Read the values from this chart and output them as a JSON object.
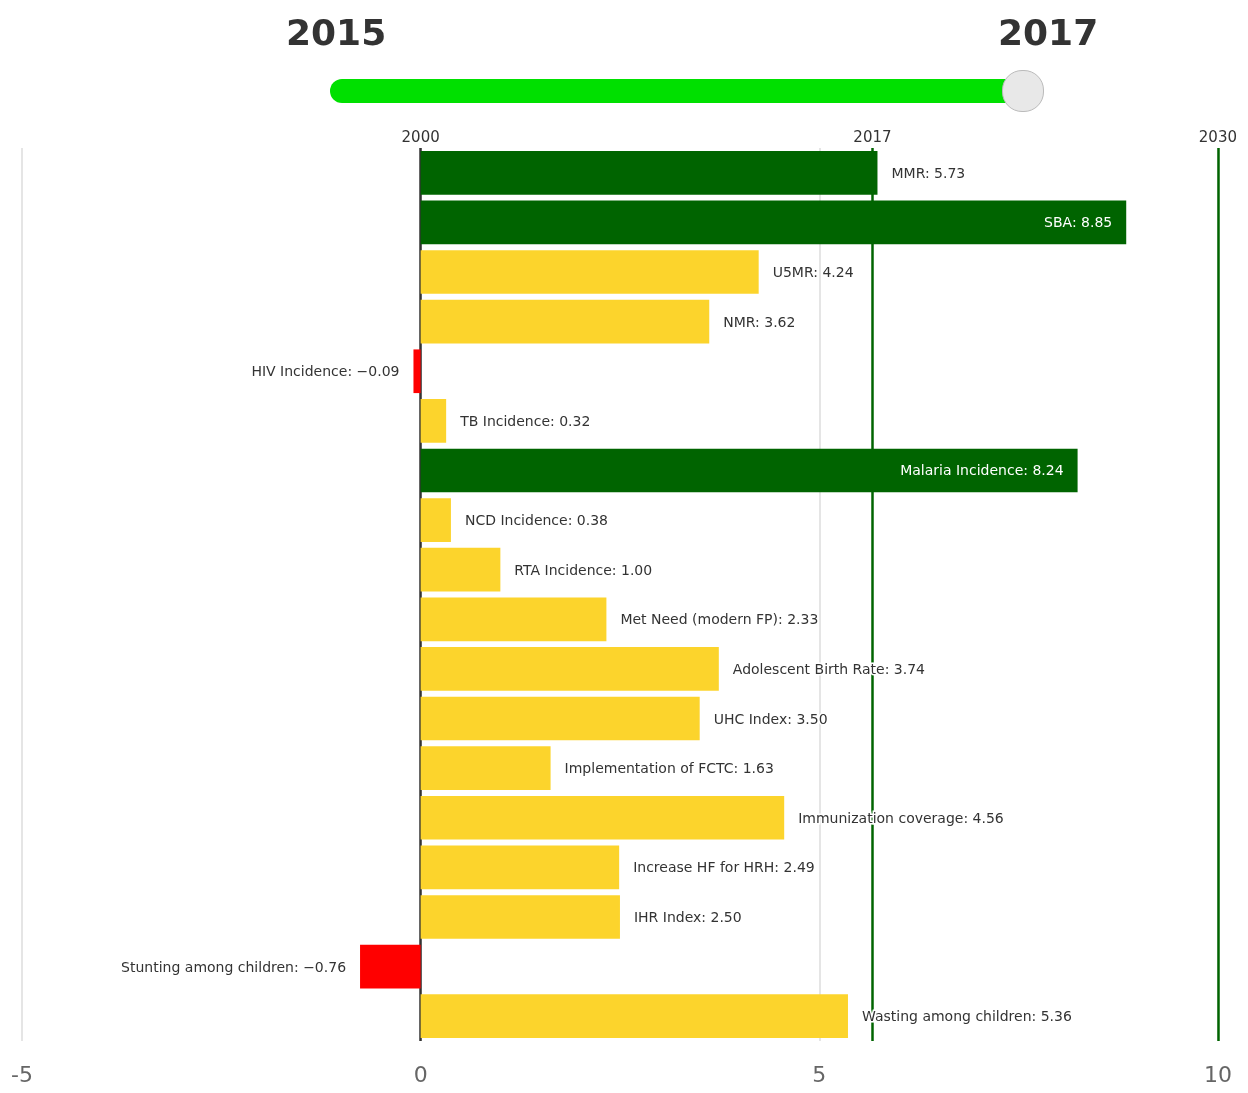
{
  "chart_data": {
    "type": "bar",
    "orientation": "horizontal",
    "annotations": [
      "2015",
      "2017"
    ],
    "categories": [
      null,
      null,
      null,
      null,
      null,
      null,
      null,
      null,
      null,
      null,
      null,
      null,
      null,
      null,
      null,
      null,
      null,
      null
    ],
    "values": [
      5.73,
      8.85,
      4.24,
      3.62,
      -0.09,
      0.32,
      8.24,
      0.38,
      1.0,
      2.33,
      3.74,
      3.5,
      1.63,
      4.56,
      2.49,
      2.5,
      -0.76,
      5.36
    ],
    "value_labels": [
      "MMR: 5.73",
      "SBA: 8.85",
      "U5MR: 4.24",
      "NMR: 3.62",
      "HIV Incidence: −0.09",
      "TB Incidence: 0.32",
      "Malaria Incidence: 8.24",
      "NCD Incidence: 0.38",
      "RTA Incidence: 1.00",
      "Met Need (modern FP): 2.33",
      "Adolescent Birth Rate: 3.74",
      "UHC Index: 3.50",
      "Implementation of FCTC: 1.63",
      "Immunization coverage: 4.56",
      "Increase HF for HRH: 2.49",
      "IHR Index: 2.50",
      "Stunting among children: −0.76",
      "Wasting among children: 5.36"
    ],
    "colors": [
      "#006400",
      "#006400",
      "#fcd42c",
      "#fcd42c",
      "#ff0000",
      "#fcd42c",
      "#006400",
      "#fcd42c",
      "#fcd42c",
      "#fcd42c",
      "#fcd42c",
      "#fcd42c",
      "#fcd42c",
      "#fcd42c",
      "#fcd42c",
      "#fcd42c",
      "#ff0000",
      "#fcd42c"
    ],
    "xlim": [
      -5,
      10
    ],
    "xticks": [
      -5,
      0,
      5,
      10
    ],
    "x2lim": [
      1985,
      2030
    ],
    "x2ticks": [
      2000,
      2017,
      2030
    ],
    "grid": "x",
    "tick_labels": "x",
    "ref_lines": [
      {
        "axis": "x2",
        "value": 2000,
        "color": "#333333"
      },
      {
        "axis": "x2",
        "value": 2017,
        "color": "#006400"
      },
      {
        "axis": "x2",
        "value": 2030,
        "color": "#006400"
      }
    ]
  }
}
